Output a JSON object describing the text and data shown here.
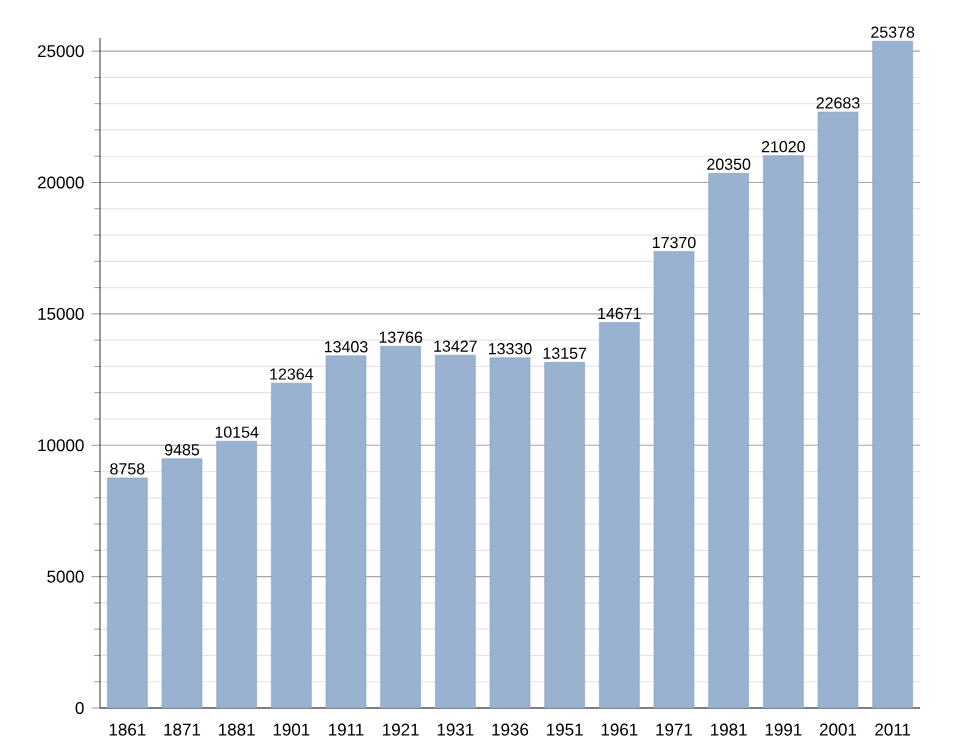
{
  "chart_data": {
    "type": "bar",
    "categories": [
      "1861",
      "1871",
      "1881",
      "1901",
      "1911",
      "1921",
      "1931",
      "1936",
      "1951",
      "1961",
      "1971",
      "1981",
      "1991",
      "2001",
      "2011"
    ],
    "values": [
      8758,
      9485,
      10154,
      12364,
      13403,
      13766,
      13427,
      13330,
      13157,
      14671,
      17370,
      20350,
      21020,
      22683,
      25378
    ],
    "color": "#98b2cf",
    "ylim": [
      0,
      25500
    ],
    "yticks": [
      0,
      5000,
      10000,
      15000,
      20000,
      25000
    ],
    "grid": "y",
    "data_labels": true
  }
}
